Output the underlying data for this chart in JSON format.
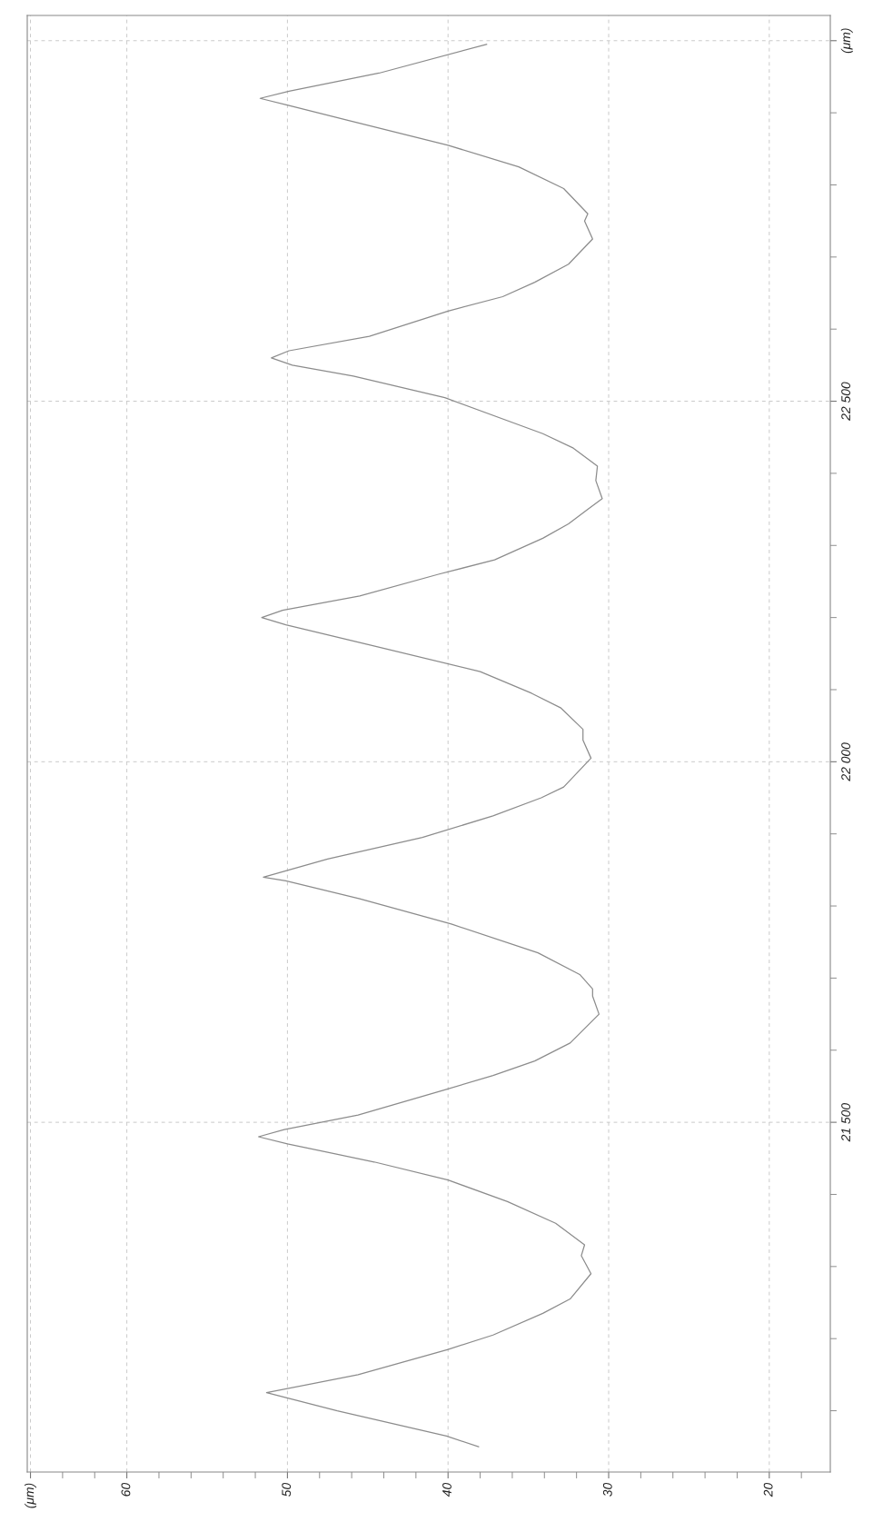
{
  "chart_data": {
    "type": "line",
    "ylim": [
      21015,
      23035
    ],
    "xlim": [
      66.2,
      16.2
    ],
    "yticks": [
      {
        "value": 21100,
        "label": null
      },
      {
        "value": 21200,
        "label": null
      },
      {
        "value": 21300,
        "label": null
      },
      {
        "value": 21400,
        "label": null
      },
      {
        "value": 21500,
        "label": "21 500"
      },
      {
        "value": 21600,
        "label": null
      },
      {
        "value": 21700,
        "label": null
      },
      {
        "value": 21800,
        "label": null
      },
      {
        "value": 21900,
        "label": null
      },
      {
        "value": 22000,
        "label": "22 000"
      },
      {
        "value": 22100,
        "label": null
      },
      {
        "value": 22200,
        "label": null
      },
      {
        "value": 22300,
        "label": null
      },
      {
        "value": 22400,
        "label": null
      },
      {
        "value": 22500,
        "label": "22 500"
      },
      {
        "value": 22600,
        "label": null
      },
      {
        "value": 22700,
        "label": null
      },
      {
        "value": 22800,
        "label": null
      },
      {
        "value": 22900,
        "label": null
      },
      {
        "value": 23000,
        "label": "(μm)"
      }
    ],
    "xticks": [
      {
        "value": 66,
        "label": "(μm)"
      },
      {
        "value": 64,
        "label": null
      },
      {
        "value": 62,
        "label": null
      },
      60,
      {
        "value": 58,
        "label": null
      },
      {
        "value": 56,
        "label": null
      },
      {
        "value": 54,
        "label": null
      },
      {
        "value": 52,
        "label": null
      },
      50,
      {
        "value": 48,
        "label": null
      },
      {
        "value": 46,
        "label": null
      },
      {
        "value": 44,
        "label": null
      },
      {
        "value": 42,
        "label": null
      },
      40,
      {
        "value": 38,
        "label": null
      },
      {
        "value": 36,
        "label": null
      },
      {
        "value": 34,
        "label": null
      },
      {
        "value": 32,
        "label": null
      },
      30,
      {
        "value": 28,
        "label": null
      },
      {
        "value": 26,
        "label": null
      },
      {
        "value": 24,
        "label": null
      },
      {
        "value": 22,
        "label": null
      },
      20,
      {
        "value": 18,
        "label": null
      }
    ],
    "grid": true,
    "line_style": "solid",
    "marker": "none",
    "series": [
      {
        "color": "#8c8c8c",
        "values": [
          21050,
          21065,
          21100,
          21125,
          21150,
          21185,
          21205,
          21235,
          21255,
          21290,
          21315,
          21330,
          21360,
          21390,
          21420,
          21445,
          21470,
          21480,
          21490,
          21510,
          21545,
          21565,
          21585,
          21610,
          21650,
          21675,
          21685,
          21705,
          21735,
          21775,
          21810,
          21835,
          21840,
          21865,
          21895,
          21925,
          21950,
          21965,
          22005,
          22030,
          22045,
          22075,
          22095,
          22125,
          22160,
          22190,
          22200,
          22210,
          22230,
          22260,
          22280,
          22310,
          22330,
          22350,
          22365,
          22390,
          22410,
          22435,
          22455,
          22505,
          22535,
          22550,
          22560,
          22570,
          22590,
          22625,
          22645,
          22665,
          22690,
          22725,
          22750,
          22760,
          22795,
          22825,
          22855,
          22890,
          22910,
          22920,
          22930,
          22955,
          22995
        ],
        "x": [
          38.1,
          40.1,
          46.9,
          51.3,
          45.6,
          40.0,
          37.2,
          34.1,
          32.4,
          31.1,
          31.7,
          31.5,
          33.3,
          36.3,
          40.0,
          44.6,
          50.0,
          51.8,
          50.2,
          45.6,
          40.2,
          37.2,
          34.6,
          32.4,
          30.6,
          31.0,
          31.0,
          31.8,
          34.4,
          39.8,
          45.5,
          50.1,
          51.5,
          47.5,
          41.6,
          37.2,
          34.2,
          32.8,
          31.1,
          31.6,
          31.6,
          33.0,
          34.8,
          38.0,
          44.5,
          50.1,
          51.6,
          50.3,
          45.5,
          40.6,
          37.1,
          34.1,
          32.5,
          31.3,
          30.4,
          30.8,
          30.7,
          32.2,
          34.1,
          40.2,
          45.9,
          49.7,
          51.0,
          49.9,
          44.9,
          40.0,
          36.6,
          34.6,
          32.5,
          31.0,
          31.5,
          31.3,
          32.8,
          35.6,
          40.0,
          46.3,
          49.9,
          51.7,
          49.9,
          44.3,
          37.6
        ]
      }
    ]
  }
}
